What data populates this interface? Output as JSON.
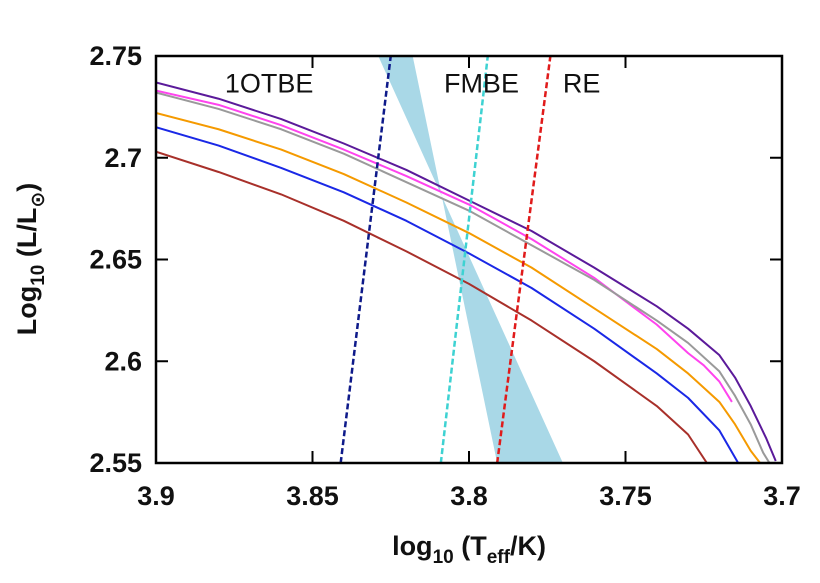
{
  "chart_data": {
    "type": "line",
    "xlabel": "log10 (Teff/K)",
    "xlabel_parts": {
      "base": "log",
      "base_sub": "10",
      "open": " (T",
      "t_sub": "eff",
      "close": "/K)"
    },
    "ylabel": "Log10 (L/L☉)",
    "ylabel_parts": {
      "base": "Log",
      "base_sub": "10",
      "open": " (L/L",
      "l_sub": "⊙",
      "close": ")"
    },
    "xlim": [
      3.9,
      3.7
    ],
    "ylim": [
      2.55,
      2.75
    ],
    "x_reversed": true,
    "x_ticks": [
      {
        "value": 3.9,
        "label": "3.9"
      },
      {
        "value": 3.85,
        "label": "3.85"
      },
      {
        "value": 3.8,
        "label": "3.8"
      },
      {
        "value": 3.75,
        "label": "3.75"
      },
      {
        "value": 3.7,
        "label": "3.7"
      }
    ],
    "y_ticks": [
      {
        "value": 2.55,
        "label": "2.55"
      },
      {
        "value": 2.6,
        "label": "2.6"
      },
      {
        "value": 2.65,
        "label": "2.65"
      },
      {
        "value": 2.7,
        "label": "2.7"
      },
      {
        "value": 2.75,
        "label": "2.75"
      }
    ],
    "grid": false,
    "legend": "none",
    "band": {
      "label": "1OTBE",
      "label_pos": [
        3.878,
        2.737
      ],
      "color": "#a9d8e7",
      "polygon": [
        [
          3.829,
          2.75
        ],
        [
          3.818,
          2.75
        ],
        [
          3.791,
          2.55
        ],
        [
          3.77,
          2.55
        ]
      ]
    },
    "edges": [
      {
        "label": "FMBE",
        "label_pos": [
          3.808,
          2.737
        ],
        "color": "#3ed2d2",
        "x_bottom": 3.809,
        "x_top": 3.794
      },
      {
        "label": "RE",
        "label_pos": [
          3.77,
          2.737
        ],
        "color": "#e01b1b",
        "x_bottom": 3.791,
        "x_top": 3.774
      },
      {
        "label": "",
        "color": "#0e1a8a",
        "x_bottom": 3.841,
        "x_top": 3.825
      }
    ],
    "series": [
      {
        "color": "#5b1a9a",
        "points": [
          [
            3.9,
            2.737
          ],
          [
            3.88,
            2.729
          ],
          [
            3.86,
            2.719
          ],
          [
            3.84,
            2.707
          ],
          [
            3.82,
            2.694
          ],
          [
            3.8,
            2.679
          ],
          [
            3.78,
            2.664
          ],
          [
            3.76,
            2.646
          ],
          [
            3.74,
            2.627
          ],
          [
            3.73,
            2.616
          ],
          [
            3.72,
            2.603
          ],
          [
            3.715,
            2.592
          ],
          [
            3.71,
            2.578
          ],
          [
            3.705,
            2.562
          ],
          [
            3.702,
            2.551
          ]
        ]
      },
      {
        "color": "#ff44ee",
        "points": [
          [
            3.9,
            2.733
          ],
          [
            3.88,
            2.726
          ],
          [
            3.86,
            2.716
          ],
          [
            3.84,
            2.704
          ],
          [
            3.82,
            2.691
          ],
          [
            3.8,
            2.677
          ],
          [
            3.78,
            2.66
          ],
          [
            3.76,
            2.641
          ],
          [
            3.74,
            2.618
          ],
          [
            3.73,
            2.604
          ],
          [
            3.725,
            2.598
          ],
          [
            3.72,
            2.59
          ],
          [
            3.716,
            2.58
          ]
        ]
      },
      {
        "color": "#9a9a9a",
        "points": [
          [
            3.9,
            2.732
          ],
          [
            3.88,
            2.724
          ],
          [
            3.86,
            2.714
          ],
          [
            3.84,
            2.702
          ],
          [
            3.82,
            2.688
          ],
          [
            3.8,
            2.674
          ],
          [
            3.78,
            2.657
          ],
          [
            3.76,
            2.64
          ],
          [
            3.74,
            2.62
          ],
          [
            3.73,
            2.609
          ],
          [
            3.72,
            2.595
          ],
          [
            3.715,
            2.583
          ],
          [
            3.71,
            2.569
          ],
          [
            3.706,
            2.555
          ],
          [
            3.704,
            2.55
          ]
        ]
      },
      {
        "color": "#f59a00",
        "points": [
          [
            3.9,
            2.722
          ],
          [
            3.88,
            2.714
          ],
          [
            3.86,
            2.704
          ],
          [
            3.84,
            2.692
          ],
          [
            3.82,
            2.678
          ],
          [
            3.8,
            2.663
          ],
          [
            3.78,
            2.646
          ],
          [
            3.76,
            2.626
          ],
          [
            3.74,
            2.606
          ],
          [
            3.73,
            2.594
          ],
          [
            3.72,
            2.58
          ],
          [
            3.715,
            2.569
          ],
          [
            3.71,
            2.556
          ],
          [
            3.707,
            2.55
          ]
        ]
      },
      {
        "color": "#1a28e6",
        "points": [
          [
            3.9,
            2.715
          ],
          [
            3.88,
            2.706
          ],
          [
            3.86,
            2.695
          ],
          [
            3.84,
            2.683
          ],
          [
            3.82,
            2.669
          ],
          [
            3.8,
            2.653
          ],
          [
            3.78,
            2.636
          ],
          [
            3.76,
            2.616
          ],
          [
            3.74,
            2.594
          ],
          [
            3.73,
            2.582
          ],
          [
            3.72,
            2.566
          ],
          [
            3.714,
            2.55
          ]
        ]
      },
      {
        "color": "#a8302a",
        "points": [
          [
            3.9,
            2.703
          ],
          [
            3.88,
            2.693
          ],
          [
            3.86,
            2.682
          ],
          [
            3.84,
            2.669
          ],
          [
            3.82,
            2.654
          ],
          [
            3.8,
            2.638
          ],
          [
            3.78,
            2.62
          ],
          [
            3.76,
            2.6
          ],
          [
            3.74,
            2.578
          ],
          [
            3.73,
            2.564
          ],
          [
            3.724,
            2.55
          ]
        ]
      }
    ]
  }
}
